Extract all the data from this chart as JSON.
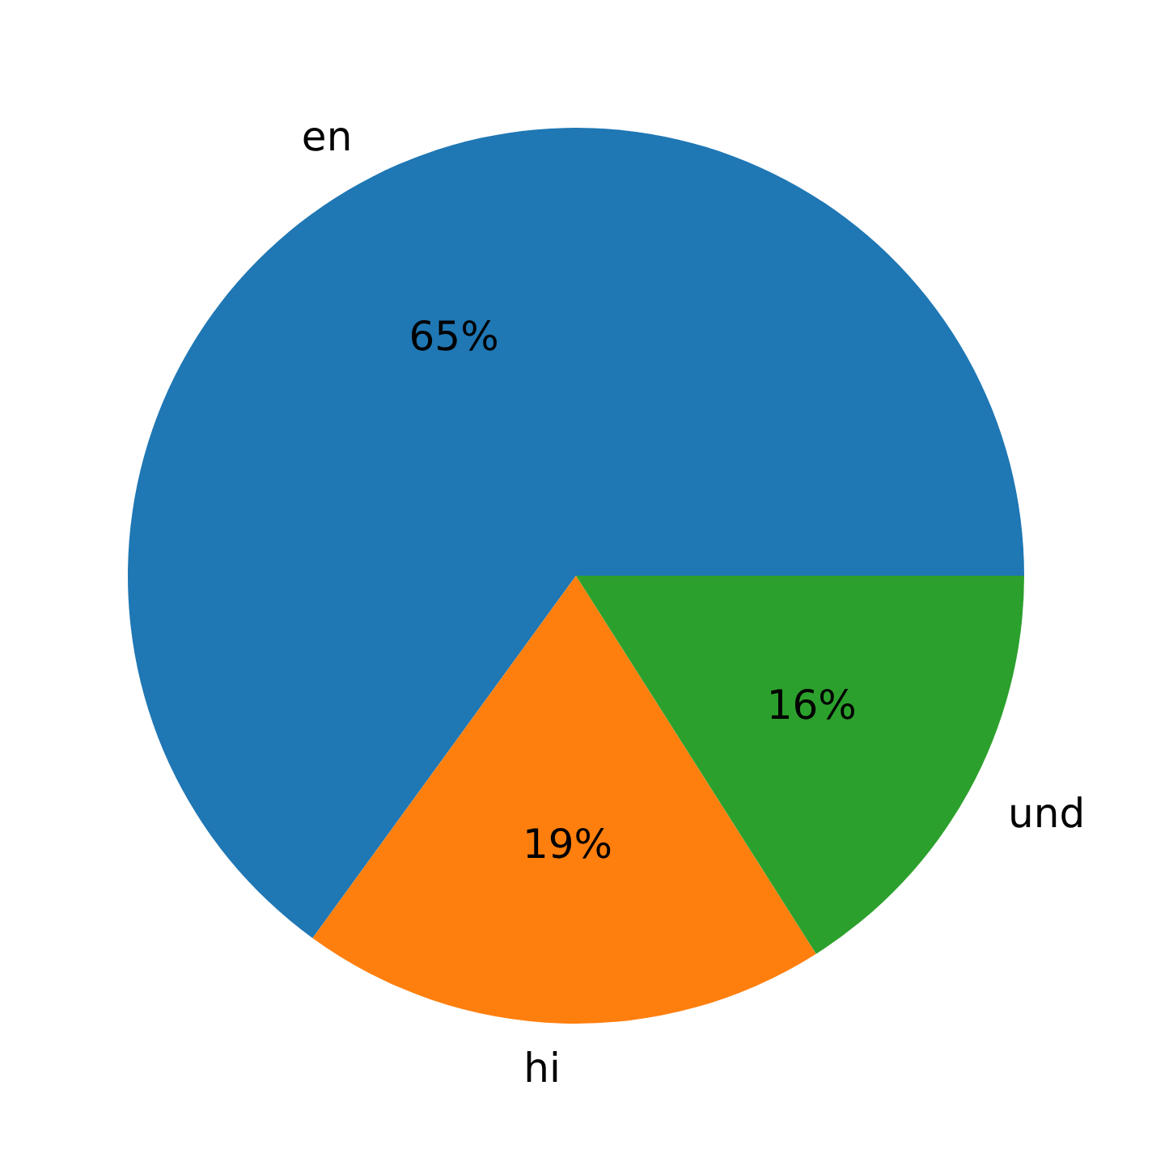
{
  "chart_data": {
    "type": "pie",
    "categories": [
      "en",
      "hi",
      "und"
    ],
    "values": [
      65,
      19,
      16
    ],
    "colors": [
      "#1f77b4",
      "#ff7f0e",
      "#2ca02c"
    ],
    "value_labels": [
      "65%",
      "19%",
      "16%"
    ]
  }
}
